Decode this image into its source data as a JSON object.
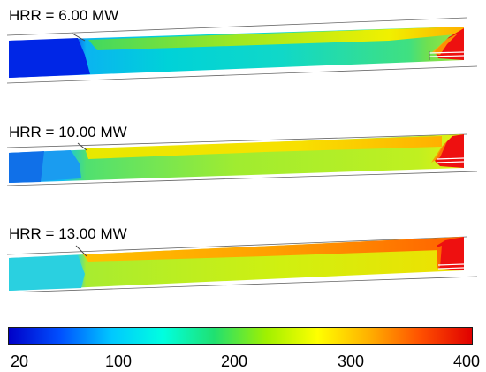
{
  "panels": [
    {
      "label": "HRR = 6.00 MW"
    },
    {
      "label": "HRR = 10.00 MW"
    },
    {
      "label": "HRR = 13.00 MW"
    }
  ],
  "colorbar": {
    "ticks": [
      "20",
      "100",
      "200",
      "300",
      "400"
    ],
    "colors": [
      "#0000c8",
      "#0050ff",
      "#00c8ff",
      "#00ffe0",
      "#20e070",
      "#a0f000",
      "#ffff00",
      "#ffb000",
      "#ff5000",
      "#e00000"
    ]
  }
}
